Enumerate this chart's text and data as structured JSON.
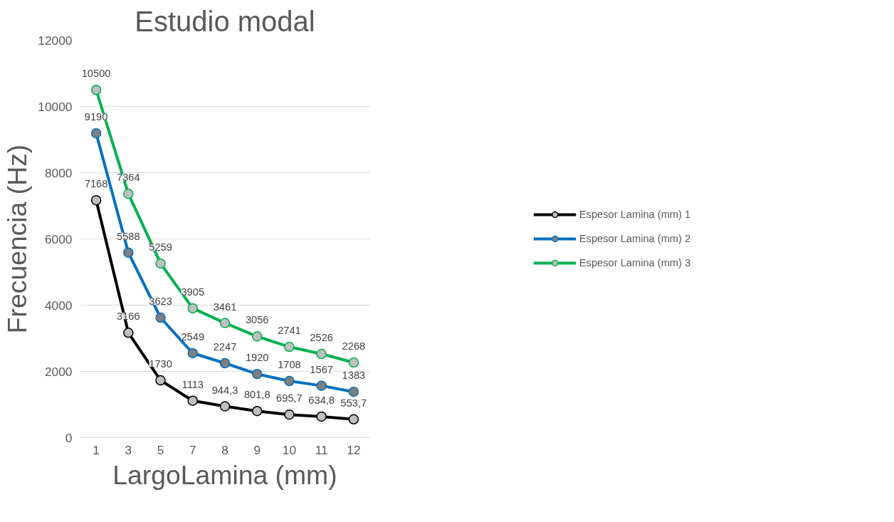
{
  "chart_data": {
    "type": "line",
    "title": "Estudio modal",
    "xlabel": "LargoLamina (mm)",
    "ylabel": "Frecuencia (Hz)",
    "categories": [
      "1",
      "3",
      "5",
      "7",
      "8",
      "9",
      "10",
      "11",
      "12"
    ],
    "series": [
      {
        "name": "Espesor Lamina (mm) 1",
        "color": "#000000",
        "values": [
          7168,
          3166,
          1730,
          1113,
          944.3,
          801.8,
          695.7,
          634.8,
          553.7
        ],
        "value_labels": [
          "7168",
          "3166",
          "1730",
          "1113",
          "944,3",
          "801,8",
          "695,7",
          "634,8",
          "553,7"
        ]
      },
      {
        "name": "Espesor Lamina (mm) 2",
        "color": "#0070c0",
        "values": [
          9190,
          5588,
          3623,
          2549,
          2247,
          1920,
          1708,
          1567,
          1383
        ],
        "value_labels": [
          "9190",
          "5588",
          "3623",
          "2549",
          "2247",
          "1920",
          "1708",
          "1567",
          "1383"
        ]
      },
      {
        "name": "Espesor Lamina (mm) 3",
        "color": "#00b050",
        "values": [
          10500,
          7364,
          5259,
          3905,
          3461,
          3056,
          2741,
          2526,
          2268
        ],
        "value_labels": [
          "10500",
          "7364",
          "5259",
          "3905",
          "3461",
          "3056",
          "2741",
          "2526",
          "2268"
        ]
      }
    ],
    "ylim": [
      0,
      12000
    ],
    "yticks": [
      0,
      2000,
      4000,
      6000,
      8000,
      10000,
      12000
    ],
    "grid": "y",
    "legend": "right",
    "marker": "circle",
    "line_style": "solid"
  }
}
